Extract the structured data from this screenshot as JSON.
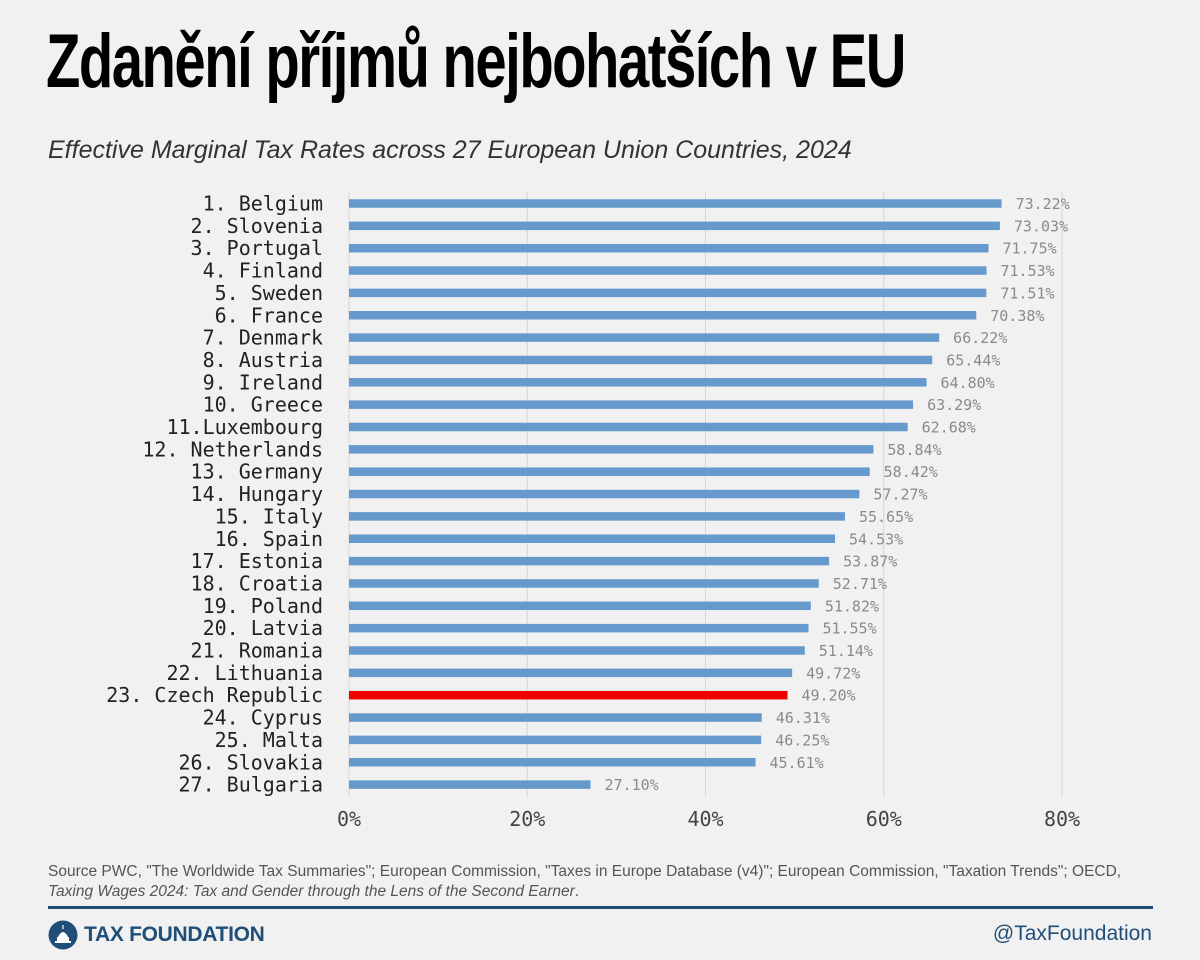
{
  "title": "Zdanění příjmů nejbohatších v EU",
  "subtitle": "Effective Marginal Tax Rates across 27 European Union Countries, 2024",
  "source_prefix": "Source PWC, \"The Worldwide Tax Summaries\"; European Commission, \"Taxes in Europe Database (v4)\"; European Commission, \"Taxation Trends\"; OECD,",
  "source_italic": "Taxing Wages 2024: Tax and Gender through the Lens of the Second Earner",
  "source_suffix": ".",
  "brand": "TAX FOUNDATION",
  "brand_icon": "capitol-dome-icon",
  "handle": "@TaxFoundation",
  "colors": {
    "bar": "#6699cc",
    "highlight": "#ee0000",
    "brand": "#1f4e79"
  },
  "chart_data": {
    "type": "bar",
    "orientation": "horizontal",
    "categories": [
      "1. Belgium",
      "2. Slovenia",
      "3. Portugal",
      "4. Finland",
      "5. Sweden",
      "6.  France",
      "7. Denmark",
      "8. Austria",
      "9.  Ireland",
      "10. Greece",
      "11.Luxembourg",
      "12. Netherlands",
      "13. Germany",
      "14. Hungary",
      "15. Italy",
      "16. Spain",
      "17. Estonia",
      "18. Croatia",
      "19. Poland",
      "20. Latvia",
      "21. Romania",
      "22. Lithuania",
      "23. Czech Republic",
      "24. Cyprus",
      "25. Malta",
      "26. Slovakia",
      "27. Bulgaria"
    ],
    "values": [
      73.22,
      73.03,
      71.75,
      71.53,
      71.51,
      70.38,
      66.22,
      65.44,
      64.8,
      63.29,
      62.68,
      58.84,
      58.42,
      57.27,
      55.65,
      54.53,
      53.87,
      52.71,
      51.82,
      51.55,
      51.14,
      49.72,
      49.2,
      46.31,
      46.25,
      45.61,
      27.1
    ],
    "value_labels": [
      "73.22%",
      "73.03%",
      "71.75%",
      "71.53%",
      "71.51%",
      "70.38%",
      "66.22%",
      "65.44%",
      "64.80%",
      "63.29%",
      "62.68%",
      "58.84%",
      "58.42%",
      "57.27%",
      "55.65%",
      "54.53%",
      "53.87%",
      "52.71%",
      "51.82%",
      "51.55%",
      "51.14%",
      "49.72%",
      "49.20%",
      "46.31%",
      "46.25%",
      "45.61%",
      "27.10%"
    ],
    "highlight": "23. Czech Republic",
    "xlim": [
      0,
      80
    ],
    "xticks": [
      0,
      20,
      40,
      60,
      80
    ],
    "xtick_labels": [
      "0%",
      "20%",
      "40%",
      "60%",
      "80%"
    ],
    "grid": "vertical"
  }
}
